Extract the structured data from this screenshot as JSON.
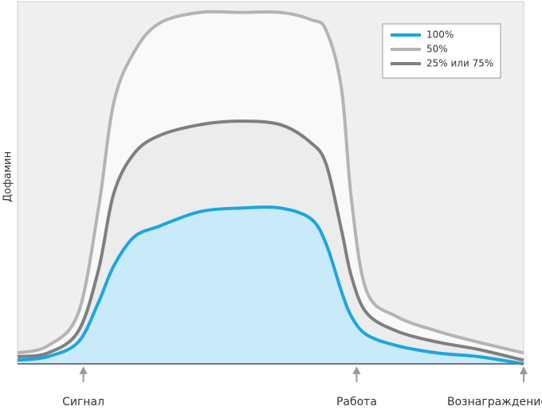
{
  "chart_data": {
    "type": "line",
    "y_label": "Дофамин",
    "x": [
      0,
      6,
      12,
      16,
      19,
      23,
      28,
      36,
      44,
      52,
      58,
      61,
      64,
      66,
      69,
      75,
      83,
      91,
      100
    ],
    "xlim": [
      0,
      100
    ],
    "ylim": [
      0,
      100
    ],
    "series": [
      {
        "name": "100%",
        "color": "#1ba6e0",
        "fill": "#c9eafa",
        "values": [
          1,
          2,
          6,
          17,
          27,
          35,
          38,
          42,
          43,
          43,
          40,
          33,
          20,
          13,
          8,
          5,
          3,
          2,
          0
        ]
      },
      {
        "name": "50%",
        "color": "#b4b4b4",
        "fill": "#f9f9f9",
        "values": [
          3,
          5,
          14,
          43,
          72,
          86,
          94,
          97,
          97,
          97,
          95,
          92,
          76,
          45,
          20,
          13,
          9,
          6,
          3
        ]
      },
      {
        "name": "25% или 75%",
        "color": "#7f7f7f",
        "fill": "#ececec",
        "values": [
          2,
          3,
          9,
          26,
          47,
          58,
          63,
          66,
          67,
          66,
          61,
          55,
          37,
          24,
          14,
          9,
          6,
          4,
          1
        ]
      }
    ],
    "annotations": [
      {
        "text": "Сигнал",
        "x": 13
      },
      {
        "text": "Работа",
        "x": 67
      },
      {
        "text": "Вознаграждение",
        "x": 100
      }
    ],
    "legend": "top-right"
  }
}
